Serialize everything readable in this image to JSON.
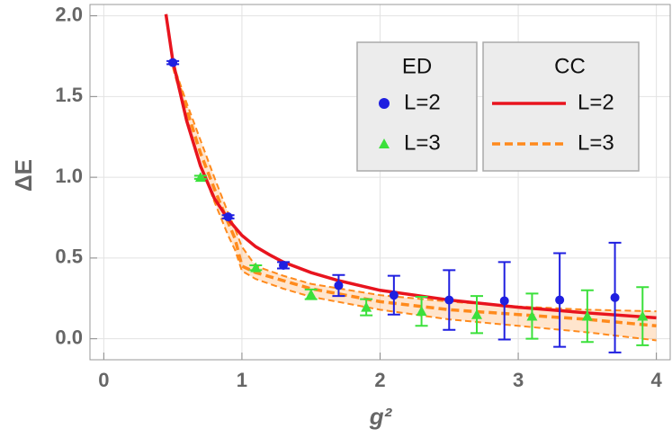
{
  "chart_data": {
    "type": "scatter-line",
    "x_label": "g²",
    "y_label": "ΔE",
    "xlim": [
      -0.1,
      4.1
    ],
    "ylim": [
      -0.13,
      2.07
    ],
    "xticks": [
      0,
      1,
      2,
      3,
      4
    ],
    "yticks": [
      {
        "value": 0,
        "label": "0.0"
      },
      0.5,
      {
        "value": 1,
        "label": "1.0"
      },
      1.5,
      {
        "value": 2,
        "label": "2.0"
      }
    ],
    "grid": true,
    "series": [
      {
        "name": "L=2",
        "group": "ED",
        "kind": "points",
        "marker": "circle",
        "color": "#1f1fe0",
        "x": [
          0.5,
          0.9,
          1.3,
          1.7,
          2.1,
          2.5,
          2.9,
          3.3,
          3.7
        ],
        "values": [
          1.71,
          0.755,
          0.455,
          0.33,
          0.27,
          0.24,
          0.235,
          0.24,
          0.255
        ],
        "errors": [
          0.01,
          0.01,
          0.02,
          0.065,
          0.12,
          0.185,
          0.24,
          0.29,
          0.34
        ]
      },
      {
        "name": "L=3",
        "group": "ED",
        "kind": "points",
        "marker": "triangle",
        "color": "#3be03b",
        "x": [
          0.7,
          1.1,
          1.5,
          1.9,
          2.3,
          2.7,
          3.1,
          3.5,
          3.9
        ],
        "values": [
          1.0,
          0.44,
          0.275,
          0.195,
          0.17,
          0.15,
          0.14,
          0.14,
          0.14
        ],
        "errors": [
          0.01,
          0.015,
          0.03,
          0.05,
          0.09,
          0.115,
          0.14,
          0.16,
          0.18
        ]
      },
      {
        "name": "L=2",
        "group": "CC",
        "kind": "line",
        "color": "#e8141e",
        "x": [
          0.45,
          0.5,
          0.6,
          0.7,
          0.8,
          0.9,
          1.0,
          1.1,
          1.2,
          1.3,
          1.5,
          1.7,
          2.0,
          2.5,
          3.0,
          3.5,
          4.0
        ],
        "values": [
          2.01,
          1.72,
          1.35,
          1.07,
          0.87,
          0.74,
          0.64,
          0.57,
          0.52,
          0.475,
          0.41,
          0.36,
          0.3,
          0.24,
          0.195,
          0.16,
          0.13
        ]
      },
      {
        "name": "L=3",
        "group": "CC",
        "kind": "band",
        "color": "#ff8a1c",
        "x": [
          0.5,
          0.6,
          0.7,
          0.8,
          0.9,
          0.95,
          1.0,
          1.1,
          1.3,
          1.5,
          2.0,
          2.5,
          3.0,
          3.5,
          4.0
        ],
        "values": [
          1.7,
          1.42,
          1.15,
          0.93,
          0.72,
          0.62,
          0.45,
          0.41,
          0.36,
          0.31,
          0.23,
          0.18,
          0.15,
          0.12,
          0.08
        ],
        "upper": [
          1.71,
          1.46,
          1.23,
          1.0,
          0.78,
          0.68,
          0.57,
          0.45,
          0.39,
          0.34,
          0.27,
          0.23,
          0.2,
          0.18,
          0.17
        ],
        "lower": [
          1.68,
          1.37,
          1.08,
          0.85,
          0.64,
          0.55,
          0.42,
          0.37,
          0.31,
          0.26,
          0.18,
          0.12,
          0.08,
          0.04,
          -0.01
        ]
      }
    ]
  }
}
